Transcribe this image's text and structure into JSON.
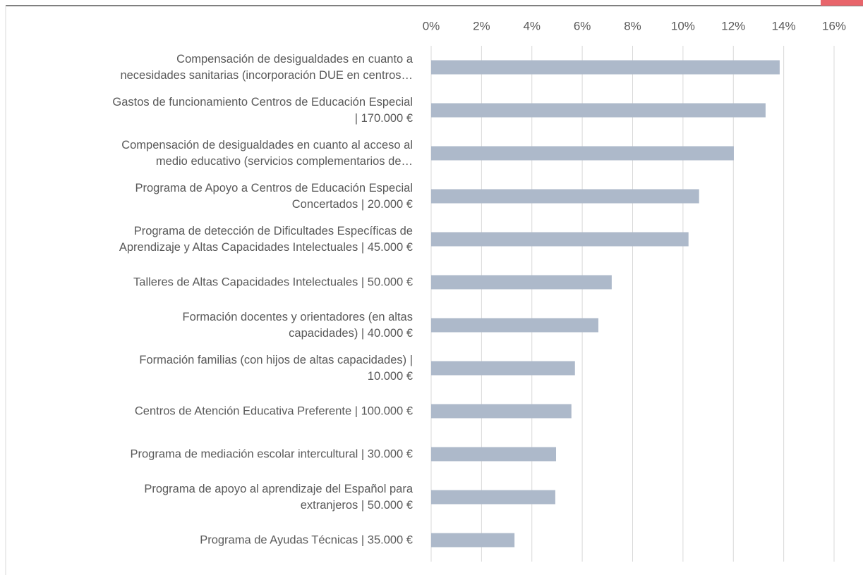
{
  "chart_data": {
    "type": "bar",
    "orientation": "horizontal",
    "categories": [
      "Compensación de desigualdades en cuanto a\nnecesidades sanitarias (incorporación DUE en centros…",
      "Gastos de funcionamiento Centros de Educación Especial\n| 170.000 €",
      "Compensación de desigualdades en cuanto al acceso al\nmedio educativo (servicios complementarios de…",
      "Programa de Apoyo a Centros de Educación Especial\nConcertados | 20.000 €",
      "Programa de detección de Dificultades Específicas de\nAprendizaje y Altas Capacidades Intelectuales | 45.000 €",
      "Talleres de Altas Capacidades Intelectuales | 50.000 €",
      "Formación docentes y orientadores (en altas\ncapacidades) | 40.000 €",
      "Formación familias (con hijos de altas capacidades) |\n10.000 €",
      "Centros de Atención Educativa Preferente | 100.000 €",
      "Programa de mediación escolar intercultural | 30.000 €",
      "Programa de apoyo al aprendizaje del Español para\nextranjeros | 50.000 €",
      "Programa de Ayudas Técnicas | 35.000 €"
    ],
    "values": [
      13.84,
      13.28,
      12.02,
      10.64,
      10.22,
      7.17,
      6.64,
      5.71,
      5.57,
      4.96,
      4.93,
      3.31
    ],
    "color": "#adb9ca",
    "xlim": [
      0,
      16
    ],
    "xticks": [
      {
        "value": 0,
        "label": "0%"
      },
      {
        "value": 2,
        "label": "2%"
      },
      {
        "value": 4,
        "label": "4%"
      },
      {
        "value": 6,
        "label": "6%"
      },
      {
        "value": 8,
        "label": "8%"
      },
      {
        "value": 10,
        "label": "10%"
      },
      {
        "value": 12,
        "label": "12%"
      },
      {
        "value": 14,
        "label": "14%"
      },
      {
        "value": 16,
        "label": "16%"
      }
    ],
    "grid": true
  }
}
